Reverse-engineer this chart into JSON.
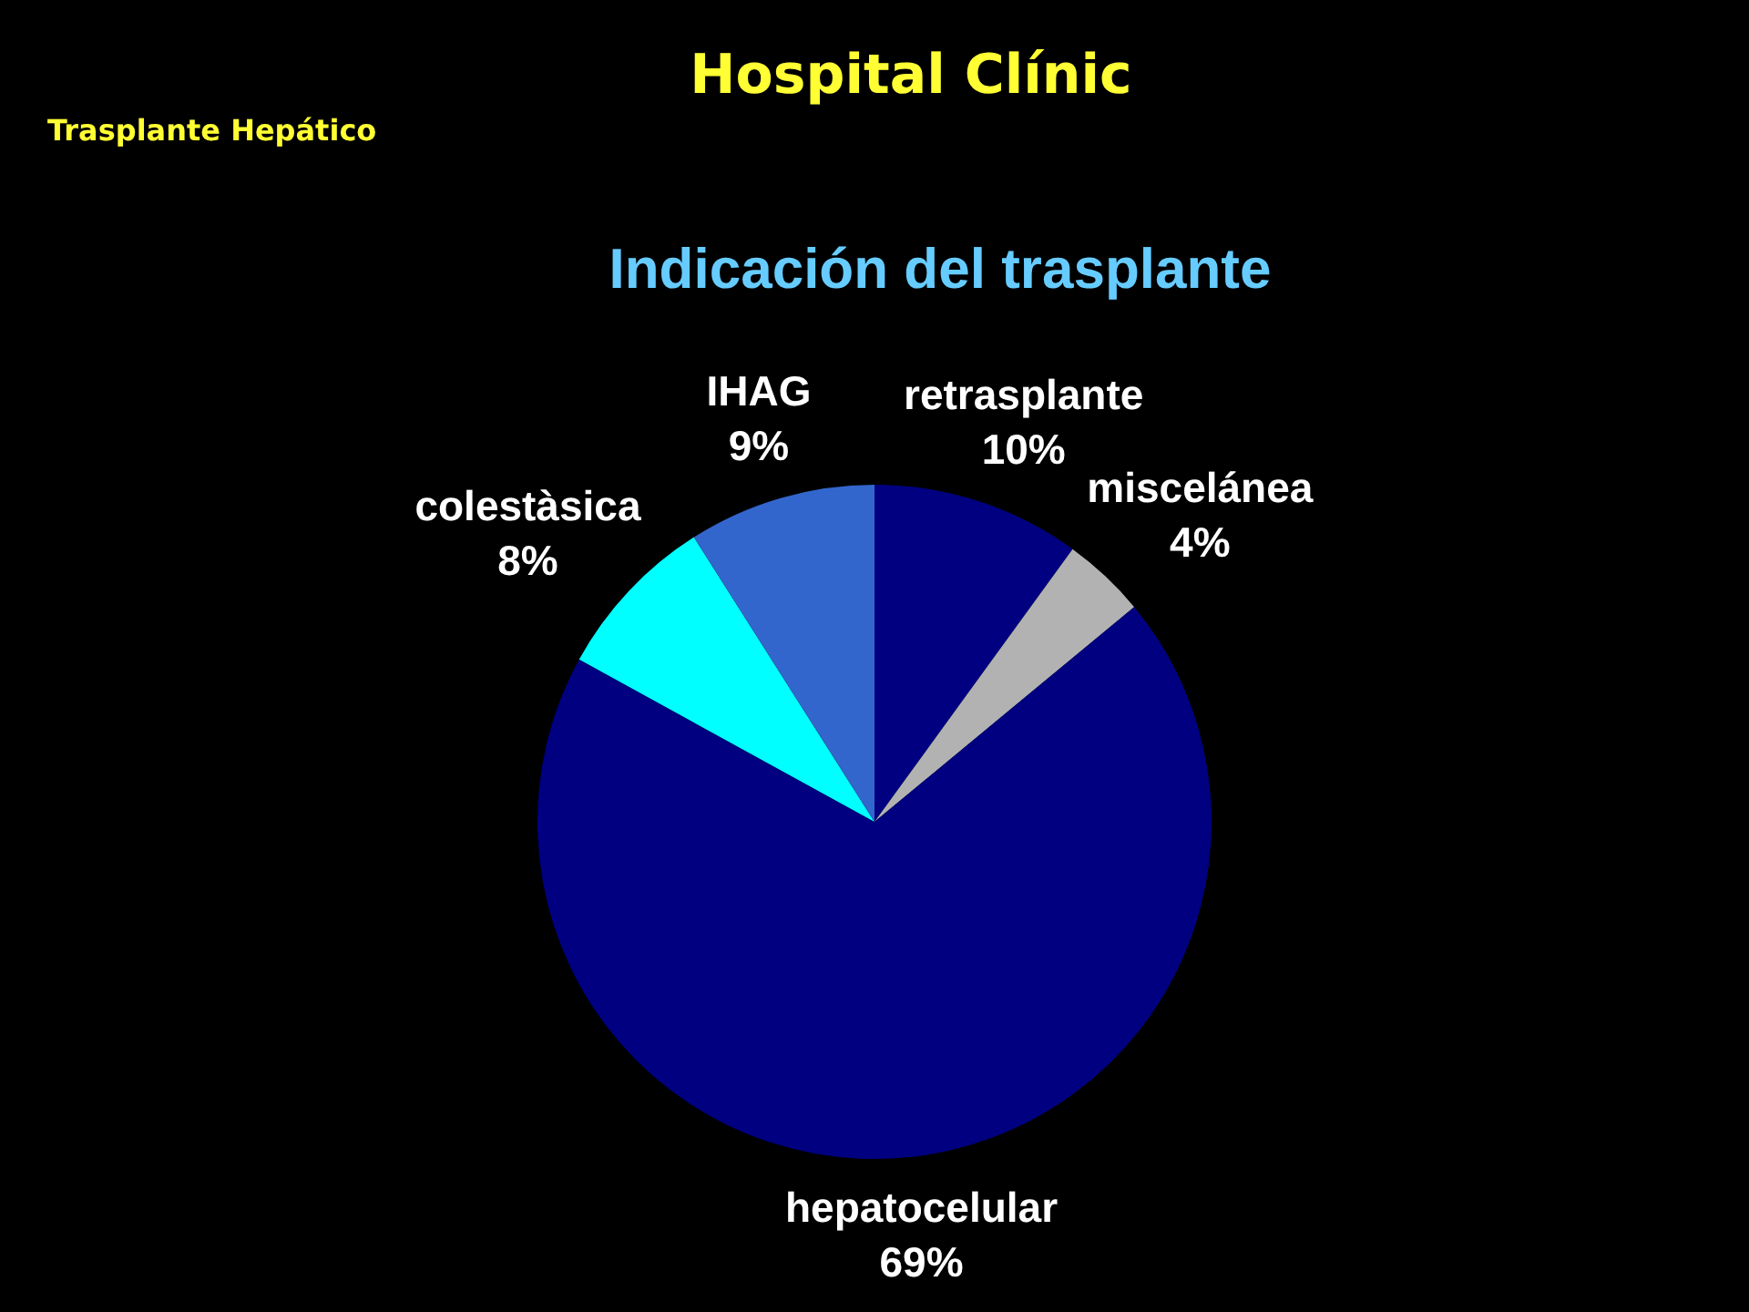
{
  "chart_data": {
    "type": "pie",
    "title": "Hospital Clínic",
    "subtitle": "Indicación del trasplante",
    "annotations": [
      "Trasplante Hepático"
    ],
    "categories": [
      "retrasplante",
      "miscelánea",
      "hepatocelular",
      "colestàsica",
      "IHAG"
    ],
    "values": [
      10,
      4,
      69,
      8,
      9
    ],
    "colors": [
      "#000080",
      "#b2b2b2",
      "#000080",
      "#00ffff",
      "#3366cc"
    ],
    "value_labels": [
      "10%",
      "4%",
      "69%",
      "8%",
      "9%"
    ],
    "legend": false
  }
}
